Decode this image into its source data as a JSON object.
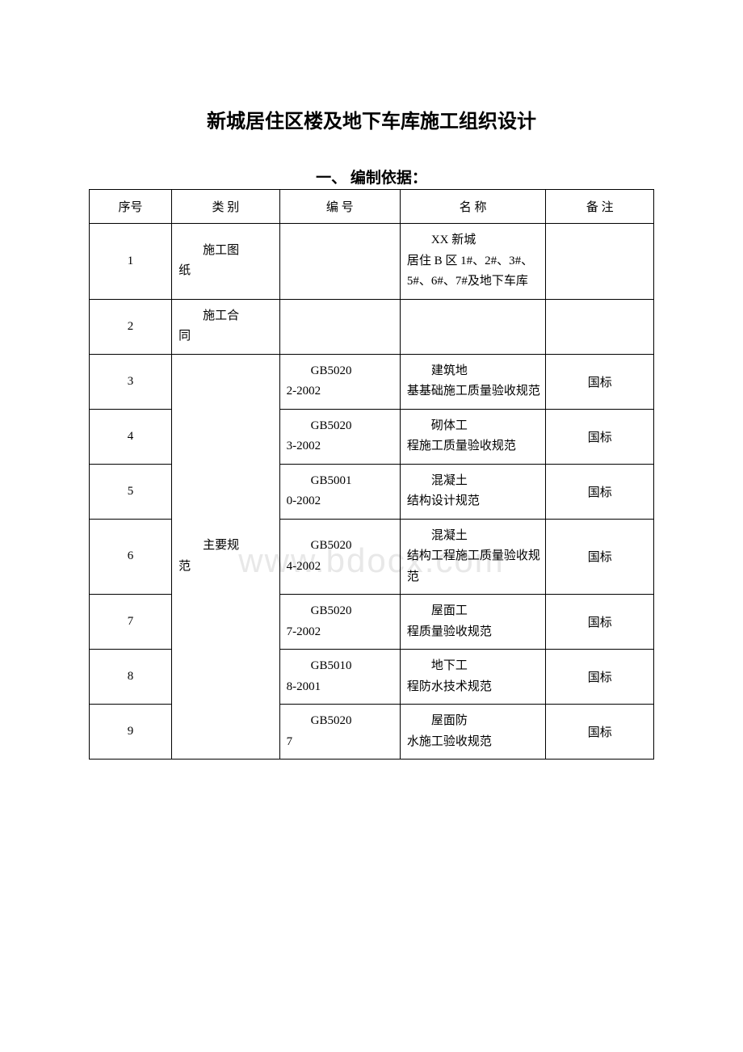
{
  "title": "新城居住区楼及地下车库施工组织设计",
  "subtitle": "一、 编制依据：",
  "watermark": "www.bdocx.com",
  "headers": {
    "seq": "序号",
    "category": "类 别",
    "code": "编 号",
    "name": "名 称",
    "note": "备 注"
  },
  "rows": [
    {
      "seq": "1",
      "category_indent": "施工图",
      "category_rest": "纸",
      "code": "",
      "name_indent": "XX 新城",
      "name_rest": "居住 B 区 1#、2#、3#、5#、6#、7#及地下车库",
      "note": ""
    },
    {
      "seq": "2",
      "category_indent": "施工合",
      "category_rest": "同",
      "code": "",
      "name": "",
      "note": ""
    },
    {
      "seq": "3",
      "code_indent": "GB5020",
      "code_rest": "2-2002",
      "name_indent": "建筑地",
      "name_rest": "基基础施工质量验收规范",
      "note": "国标"
    },
    {
      "seq": "4",
      "code_indent": "GB5020",
      "code_rest": "3-2002",
      "name_indent": "砌体工",
      "name_rest": "程施工质量验收规范",
      "note": "国标"
    },
    {
      "seq": "5",
      "code_indent": "GB5001",
      "code_rest": "0-2002",
      "name_indent": "混凝土",
      "name_rest": "结构设计规范",
      "note": "国标"
    },
    {
      "seq": "6",
      "code_indent": "GB5020",
      "code_rest": "4-2002",
      "name_indent": "混凝土",
      "name_rest": "结构工程施工质量验收规范",
      "note": "国标"
    },
    {
      "seq": "7",
      "code_indent": "GB5020",
      "code_rest": "7-2002",
      "name_indent": "屋面工",
      "name_rest": "程质量验收规范",
      "note": "国标"
    },
    {
      "seq": "8",
      "code_indent": "GB5010",
      "code_rest": "8-2001",
      "name_indent": "地下工",
      "name_rest": "程防水技术规范",
      "note": "国标"
    },
    {
      "seq": "9",
      "code_indent": "GB5020",
      "code_rest": "7",
      "name_indent": "屋面防",
      "name_rest": "水施工验收规范",
      "note": "国标"
    }
  ],
  "merged_category": {
    "indent": "主要规",
    "rest": "范"
  },
  "colors": {
    "text": "#000000",
    "background": "#ffffff",
    "border": "#000000",
    "watermark": "#e8e8e8"
  },
  "typography": {
    "title_fontsize": 24,
    "subtitle_fontsize": 19,
    "cell_fontsize": 15,
    "watermark_fontsize": 42
  }
}
